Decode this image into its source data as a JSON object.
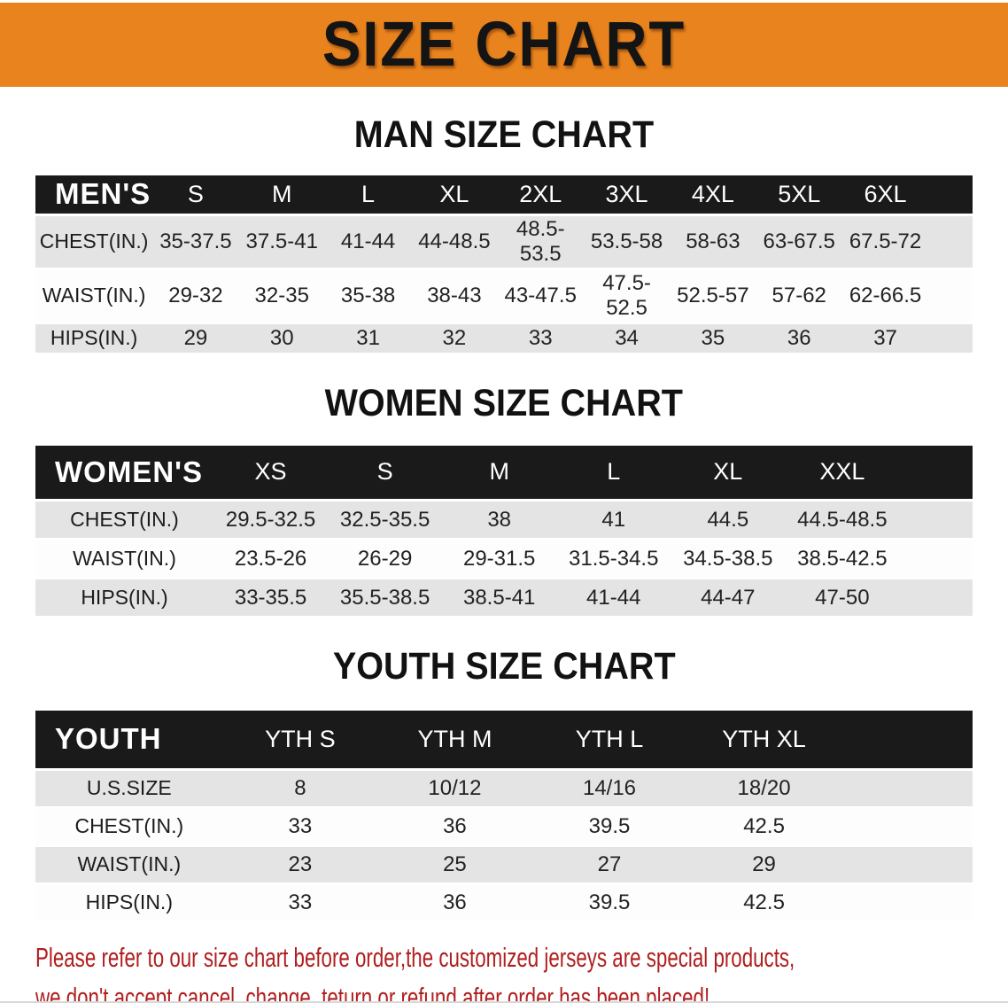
{
  "banner": {
    "title": "SIZE CHART",
    "bg_color": "#E8831E"
  },
  "colors": {
    "table_header_bg": "#1a1a1a",
    "row_stripe": "#e4e4e4",
    "disclaimer_text": "#B01E1E"
  },
  "sections": [
    {
      "title": "MAN SIZE CHART",
      "table": {
        "header_label": "MEN'S",
        "columns": [
          "S",
          "M",
          "L",
          "XL",
          "2XL",
          "3XL",
          "4XL",
          "5XL",
          "6XL"
        ],
        "rows": [
          {
            "label": "CHEST(IN.)",
            "values": [
              "35-37.5",
              "37.5-41",
              "41-44",
              "44-48.5",
              "48.5-53.5",
              "53.5-58",
              "58-63",
              "63-67.5",
              "67.5-72"
            ]
          },
          {
            "label": "WAIST(IN.)",
            "values": [
              "29-32",
              "32-35",
              "35-38",
              "38-43",
              "43-47.5",
              "47.5-52.5",
              "52.5-57",
              "57-62",
              "62-66.5"
            ]
          },
          {
            "label": "HIPS(IN.)",
            "values": [
              "29",
              "30",
              "31",
              "32",
              "33",
              "34",
              "35",
              "36",
              "37"
            ]
          }
        ]
      }
    },
    {
      "title": "WOMEN SIZE CHART",
      "table": {
        "header_label": "WOMEN'S",
        "columns": [
          "XS",
          "S",
          "M",
          "L",
          "XL",
          "XXL"
        ],
        "rows": [
          {
            "label": "CHEST(IN.)",
            "values": [
              "29.5-32.5",
              "32.5-35.5",
              "38",
              "41",
              "44.5",
              "44.5-48.5"
            ]
          },
          {
            "label": "WAIST(IN.)",
            "values": [
              "23.5-26",
              "26-29",
              "29-31.5",
              "31.5-34.5",
              "34.5-38.5",
              "38.5-42.5"
            ]
          },
          {
            "label": "HIPS(IN.)",
            "values": [
              "33-35.5",
              "35.5-38.5",
              "38.5-41",
              "41-44",
              "44-47",
              "47-50"
            ]
          }
        ]
      }
    },
    {
      "title": "YOUTH SIZE CHART",
      "table": {
        "header_label": "YOUTH",
        "columns": [
          "YTH S",
          "YTH M",
          "YTH L",
          "YTH XL"
        ],
        "rows": [
          {
            "label": "U.S.SIZE",
            "values": [
              "8",
              "10/12",
              "14/16",
              "18/20"
            ]
          },
          {
            "label": "CHEST(IN.)",
            "values": [
              "33",
              "36",
              "39.5",
              "42.5"
            ]
          },
          {
            "label": "WAIST(IN.)",
            "values": [
              "23",
              "25",
              "27",
              "29"
            ]
          },
          {
            "label": "HIPS(IN.)",
            "values": [
              "33",
              "36",
              "39.5",
              "42.5"
            ]
          }
        ]
      }
    }
  ],
  "disclaimer": {
    "line1": "Please refer to our size chart before order,the customized jerseys are special products,",
    "line2": "we don't accept cancel, change, teturn or refund after order has been placed!"
  }
}
